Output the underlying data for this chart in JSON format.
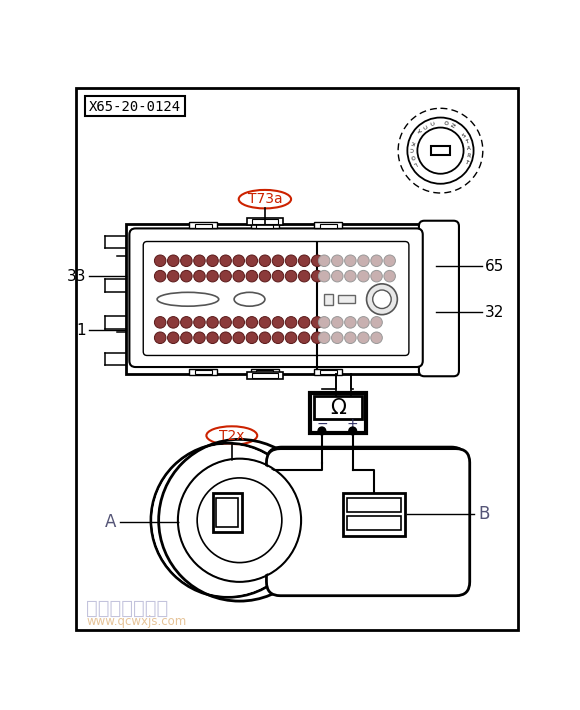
{
  "title_label": "X65-20-0124",
  "connector_label": "T73a",
  "connector2_label": "T2x",
  "pin_labels": [
    "33",
    "1",
    "65",
    "32"
  ],
  "terminal_labels": [
    "A",
    "B"
  ],
  "watermark_text": "汽车维修技术网",
  "watermark_url": "www.qcwxjs.com",
  "multimeter_symbol": "Ω",
  "key_text": "LOCK ACC ON START",
  "pin_color_dark": "#8B3A3A",
  "connector_label_color": "#cc2200",
  "label_color_AB": "#555577"
}
